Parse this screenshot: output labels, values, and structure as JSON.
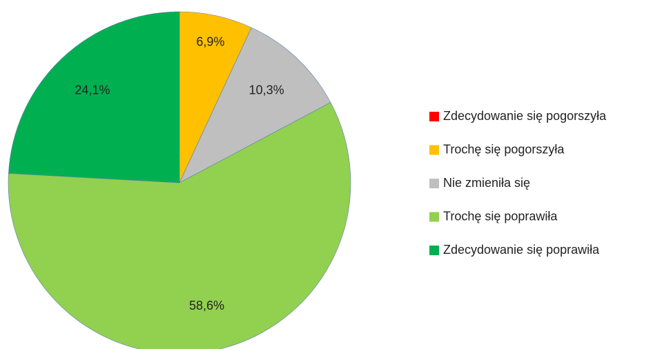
{
  "chart_data": {
    "type": "pie",
    "categories": [
      "Zdecydowanie się pogorszyła",
      "Trochę się pogorszyła",
      "Nie zmieniła się",
      "Trochę się poprawiła",
      "Zdecydowanie się poprawiła"
    ],
    "values": [
      0,
      6.9,
      10.3,
      58.6,
      24.1
    ],
    "value_labels": [
      null,
      "6,9%",
      "10,3%",
      "58,6%",
      "24,1%"
    ],
    "colors": [
      "#ff0000",
      "#ffc000",
      "#bfbfbf",
      "#92d050",
      "#00b050"
    ],
    "legend": "right"
  }
}
